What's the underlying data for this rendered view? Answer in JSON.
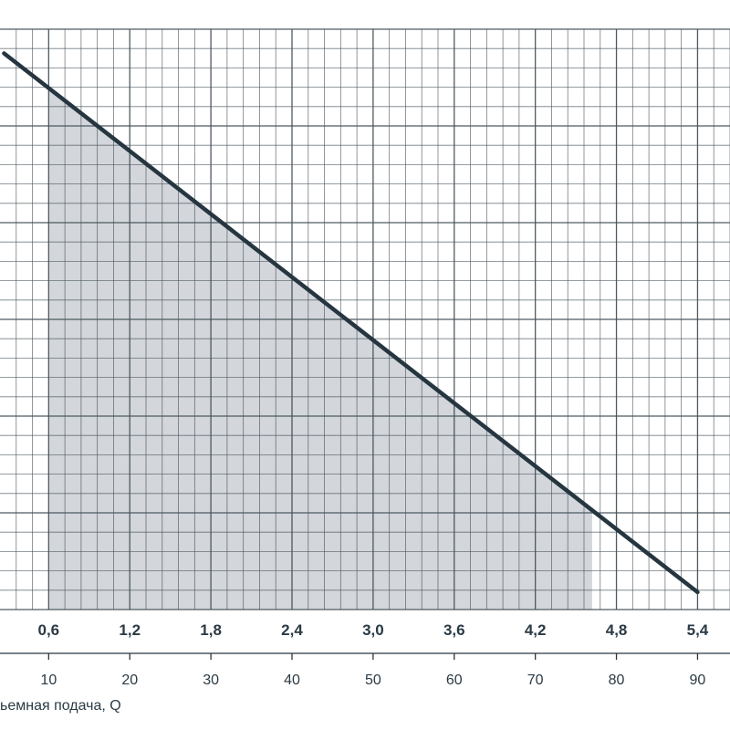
{
  "chart_data": {
    "type": "line",
    "xlabel": "ьемная подача, Q",
    "x_primary_ticks": [
      "0,6",
      "1,2",
      "1,8",
      "2,4",
      "3,0",
      "3,6",
      "4,2",
      "4,8",
      "5,4"
    ],
    "x_secondary_ticks": [
      "10",
      "20",
      "30",
      "40",
      "50",
      "60",
      "70",
      "80",
      "90"
    ],
    "x_range": [
      4,
      94
    ],
    "y_range": [
      0,
      60
    ],
    "grid": true,
    "series": [
      {
        "x": [
          4.5,
          90
        ],
        "y": [
          57.5,
          1.8
        ]
      }
    ],
    "shaded_region": {
      "x_range": [
        10,
        77
      ],
      "bounded_by": "series",
      "fill_color": "#d3d6db"
    },
    "colors": {
      "line": "#263640",
      "grid": "#46525a",
      "fill": "#d3d6db",
      "text": "#2b3a44"
    }
  }
}
